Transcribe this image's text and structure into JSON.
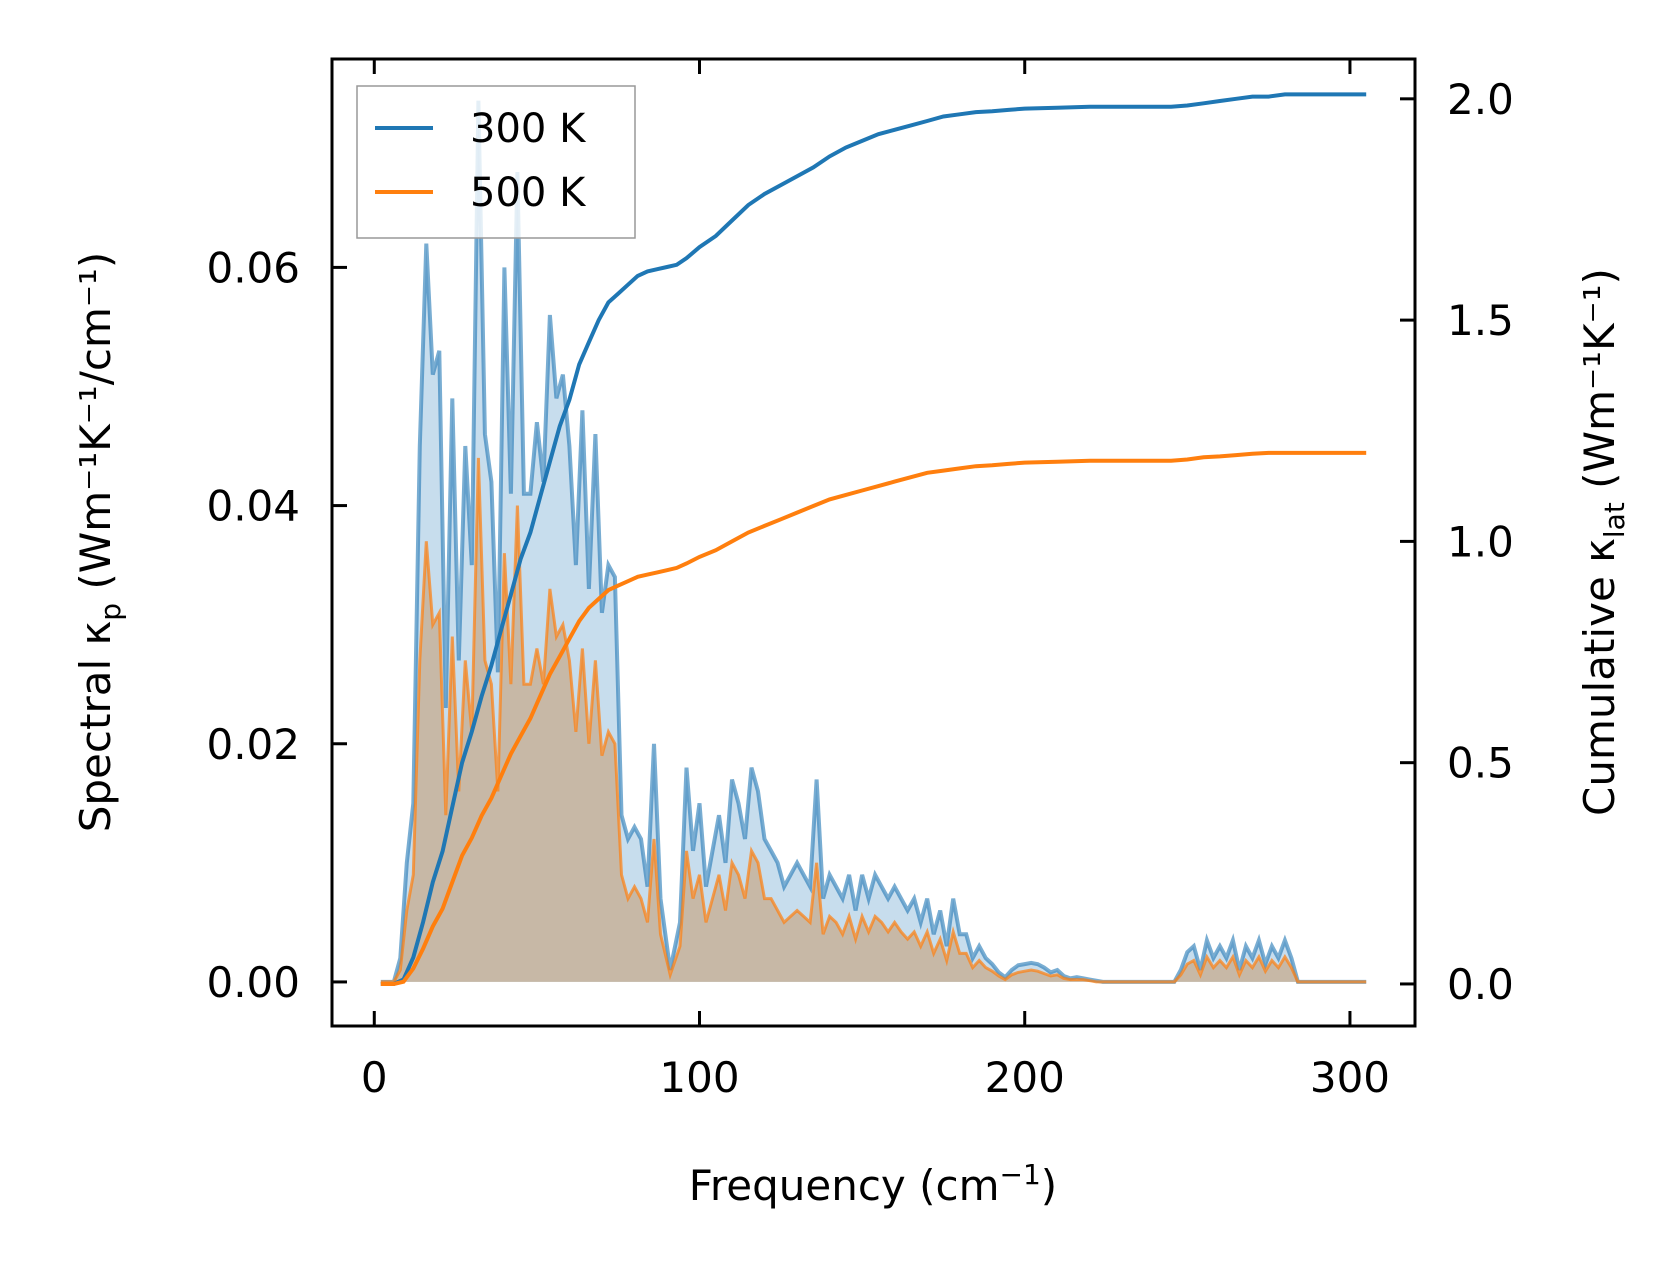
{
  "chart_data": {
    "type": "area",
    "x_label": {
      "main": "Frequency (cm",
      "sup": "−1",
      "end": ")"
    },
    "y_label": "Spectral κₚ (Wm⁻¹K⁻¹/cm⁻¹)",
    "y_label_parts": {
      "base": "Spectral κ",
      "sub": "p",
      "unit": " (Wm⁻¹K⁻¹/cm⁻¹)"
    },
    "y2_label": "Cumulative κₗₐₜ (Wm⁻¹K⁻¹)",
    "y2_label_parts": {
      "base": "Cumulative κ",
      "sub": "lat",
      "unit": " (Wm⁻¹K⁻¹)"
    },
    "xlim": [
      -13,
      320
    ],
    "ylim": [
      -0.0037,
      0.0775
    ],
    "y2lim": [
      -0.095,
      2.09
    ],
    "x_ticks": [
      0,
      100,
      200,
      300
    ],
    "x_tick_labels": [
      "0",
      "100",
      "200",
      "300"
    ],
    "y_ticks": [
      0,
      0.02,
      0.04,
      0.06
    ],
    "y_tick_labels": [
      "0.00",
      "0.02",
      "0.04",
      "0.06"
    ],
    "y2_ticks": [
      0,
      0.5,
      1.0,
      1.5,
      2.0
    ],
    "y2_tick_labels": [
      "0.0",
      "0.5",
      "1.0",
      "1.5",
      "2.0"
    ],
    "legend": {
      "position": "top-left",
      "entries": [
        "300 K",
        "500 K"
      ]
    },
    "colors": {
      "300K": "#1f77b4",
      "500K": "#ff7f0e",
      "fill300": "#8fbcdc",
      "fill500": "#c7a077"
    },
    "spectral_x": [
      2,
      6,
      8,
      10,
      12,
      14,
      16,
      18,
      20,
      22,
      24,
      26,
      28,
      30,
      32,
      34,
      36,
      38,
      40,
      42,
      44,
      46,
      48,
      50,
      52,
      54,
      56,
      58,
      60,
      62,
      64,
      66,
      68,
      70,
      72,
      74,
      76,
      78,
      80,
      82,
      84,
      86,
      88,
      91,
      94,
      96,
      98,
      100,
      102,
      104,
      106,
      108,
      110,
      112,
      114,
      116,
      118,
      120,
      122,
      124,
      126,
      128,
      130,
      132,
      134,
      136,
      138,
      140,
      142,
      144,
      146,
      148,
      150,
      152,
      154,
      156,
      158,
      160,
      162,
      164,
      166,
      168,
      170,
      172,
      174,
      176,
      178,
      180,
      182,
      184,
      186,
      188,
      190,
      192,
      194,
      196,
      198,
      200,
      202,
      204,
      206,
      208,
      210,
      212,
      214,
      216,
      218,
      220,
      222,
      224,
      226,
      228,
      230,
      232,
      234,
      236,
      238,
      240,
      242,
      244,
      246,
      248,
      250,
      252,
      254,
      256,
      258,
      260,
      262,
      264,
      266,
      268,
      270,
      272,
      274,
      276,
      278,
      280,
      282,
      284,
      286,
      288,
      290,
      292,
      294,
      296,
      298,
      300,
      302,
      305
    ],
    "spectral_300K": [
      0,
      0,
      0.002,
      0.01,
      0.015,
      0.045,
      0.062,
      0.051,
      0.053,
      0.023,
      0.049,
      0.027,
      0.045,
      0.035,
      0.074,
      0.046,
      0.042,
      0.026,
      0.06,
      0.041,
      0.068,
      0.041,
      0.041,
      0.047,
      0.042,
      0.056,
      0.049,
      0.051,
      0.045,
      0.035,
      0.048,
      0.033,
      0.046,
      0.031,
      0.035,
      0.034,
      0.014,
      0.012,
      0.013,
      0.012,
      0.008,
      0.02,
      0.007,
      0.001,
      0.005,
      0.018,
      0.011,
      0.015,
      0.008,
      0.011,
      0.014,
      0.01,
      0.017,
      0.015,
      0.012,
      0.018,
      0.016,
      0.012,
      0.011,
      0.01,
      0.008,
      0.009,
      0.01,
      0.009,
      0.008,
      0.017,
      0.007,
      0.009,
      0.008,
      0.007,
      0.009,
      0.006,
      0.009,
      0.007,
      0.009,
      0.008,
      0.007,
      0.008,
      0.007,
      0.006,
      0.007,
      0.005,
      0.007,
      0.004,
      0.006,
      0.003,
      0.007,
      0.004,
      0.004,
      0.002,
      0.003,
      0.002,
      0.0015,
      0.0008,
      0.0004,
      0.001,
      0.0014,
      0.0015,
      0.0016,
      0.0015,
      0.0012,
      0.0008,
      0.001,
      0.0005,
      0.0003,
      0.0004,
      0.0003,
      0.0002,
      0.0001,
      0,
      0,
      0,
      0,
      0,
      0,
      0,
      0,
      0,
      0,
      0,
      0,
      0.001,
      0.0025,
      0.003,
      0.001,
      0.0035,
      0.002,
      0.003,
      0.002,
      0.0035,
      0.001,
      0.003,
      0.002,
      0.0035,
      0.0015,
      0.003,
      0.002,
      0.0035,
      0.002,
      0,
      0,
      0,
      0,
      0,
      0,
      0,
      0,
      0,
      0,
      0
    ],
    "spectral_500K": [
      0,
      0,
      0.001,
      0.006,
      0.009,
      0.027,
      0.037,
      0.03,
      0.031,
      0.014,
      0.029,
      0.016,
      0.027,
      0.021,
      0.044,
      0.027,
      0.025,
      0.016,
      0.036,
      0.025,
      0.04,
      0.025,
      0.025,
      0.028,
      0.025,
      0.033,
      0.029,
      0.03,
      0.027,
      0.021,
      0.028,
      0.02,
      0.027,
      0.019,
      0.021,
      0.02,
      0.009,
      0.007,
      0.008,
      0.007,
      0.005,
      0.012,
      0.004,
      0.0006,
      0.003,
      0.011,
      0.007,
      0.009,
      0.005,
      0.007,
      0.009,
      0.006,
      0.01,
      0.009,
      0.007,
      0.011,
      0.01,
      0.007,
      0.007,
      0.006,
      0.005,
      0.0055,
      0.006,
      0.0055,
      0.005,
      0.01,
      0.004,
      0.0055,
      0.005,
      0.004,
      0.0055,
      0.0036,
      0.0055,
      0.0042,
      0.0055,
      0.005,
      0.0042,
      0.005,
      0.0042,
      0.0036,
      0.0042,
      0.003,
      0.0042,
      0.0024,
      0.0036,
      0.0018,
      0.0042,
      0.0024,
      0.0024,
      0.0012,
      0.0018,
      0.0012,
      0.0009,
      0.0005,
      0.0002,
      0.0006,
      0.0008,
      0.0009,
      0.001,
      0.0009,
      0.0007,
      0.0005,
      0.0006,
      0.0003,
      0.0002,
      0.0002,
      0.0002,
      0.0001,
      0,
      0,
      0,
      0,
      0,
      0,
      0,
      0,
      0,
      0,
      0,
      0,
      0,
      0.0006,
      0.0015,
      0.0018,
      0.0006,
      0.0021,
      0.0012,
      0.0018,
      0.0012,
      0.0021,
      0.0006,
      0.0018,
      0.0012,
      0.0021,
      0.0009,
      0.0018,
      0.0012,
      0.0021,
      0.0012,
      0,
      0,
      0,
      0,
      0,
      0,
      0,
      0,
      0,
      0,
      0
    ],
    "cumulative_x": [
      2,
      6,
      9,
      12,
      15,
      18,
      21,
      24,
      27,
      30,
      33,
      36,
      39,
      42,
      45,
      48,
      51,
      54,
      57,
      60,
      63,
      66,
      69,
      72,
      75,
      78,
      81,
      84,
      87,
      90,
      93,
      96,
      100,
      105,
      110,
      115,
      120,
      125,
      130,
      135,
      140,
      145,
      150,
      155,
      160,
      165,
      170,
      175,
      180,
      185,
      190,
      195,
      200,
      210,
      220,
      230,
      240,
      245,
      250,
      255,
      260,
      265,
      270,
      275,
      280,
      290,
      305
    ],
    "cumulative_300K": [
      0,
      0,
      0.01,
      0.06,
      0.14,
      0.23,
      0.3,
      0.4,
      0.5,
      0.57,
      0.65,
      0.72,
      0.8,
      0.88,
      0.96,
      1.02,
      1.1,
      1.18,
      1.26,
      1.32,
      1.4,
      1.45,
      1.5,
      1.54,
      1.56,
      1.58,
      1.6,
      1.61,
      1.615,
      1.62,
      1.625,
      1.64,
      1.665,
      1.69,
      1.725,
      1.76,
      1.785,
      1.805,
      1.825,
      1.845,
      1.87,
      1.89,
      1.905,
      1.92,
      1.93,
      1.94,
      1.95,
      1.96,
      1.965,
      1.97,
      1.972,
      1.975,
      1.978,
      1.98,
      1.982,
      1.982,
      1.982,
      1.982,
      1.985,
      1.99,
      1.995,
      2.0,
      2.005,
      2.005,
      2.01,
      2.01,
      2.01
    ],
    "cumulative_500K": [
      0,
      0,
      0.005,
      0.035,
      0.08,
      0.13,
      0.17,
      0.23,
      0.29,
      0.33,
      0.38,
      0.42,
      0.47,
      0.52,
      0.56,
      0.6,
      0.65,
      0.7,
      0.74,
      0.78,
      0.82,
      0.85,
      0.87,
      0.89,
      0.9,
      0.91,
      0.92,
      0.925,
      0.93,
      0.935,
      0.94,
      0.95,
      0.965,
      0.98,
      1.0,
      1.02,
      1.035,
      1.05,
      1.065,
      1.08,
      1.095,
      1.105,
      1.115,
      1.125,
      1.135,
      1.145,
      1.155,
      1.16,
      1.165,
      1.17,
      1.172,
      1.175,
      1.178,
      1.18,
      1.182,
      1.182,
      1.182,
      1.182,
      1.185,
      1.19,
      1.192,
      1.195,
      1.198,
      1.2,
      1.2,
      1.2,
      1.2
    ]
  }
}
